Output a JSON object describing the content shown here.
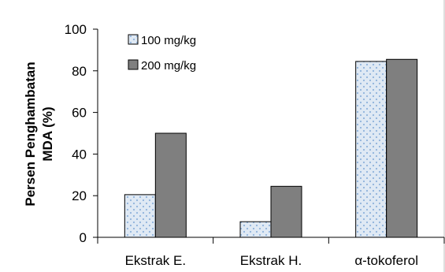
{
  "chart_data": {
    "type": "bar",
    "title": "",
    "xlabel": "",
    "ylabel_lines": [
      "Persen Penghambatan",
      "MDA (%)"
    ],
    "ylim": [
      0,
      100
    ],
    "yticks": [
      0,
      20,
      40,
      60,
      80,
      100
    ],
    "grid": false,
    "legend_placement": "top-left",
    "categories": [
      "Ekstrak E.",
      "Ekstrak H.",
      "α-tokoferol"
    ],
    "series": [
      {
        "name": "100 mg/kg",
        "values": [
          20.5,
          7.5,
          84.5
        ],
        "fill": "#dfe9f4",
        "pattern": "dots",
        "dot_color": "#8fb3dc"
      },
      {
        "name": "200 mg/kg",
        "values": [
          50,
          24.5,
          85.5
        ],
        "fill": "#7f7f7f",
        "pattern": "solid"
      }
    ]
  }
}
